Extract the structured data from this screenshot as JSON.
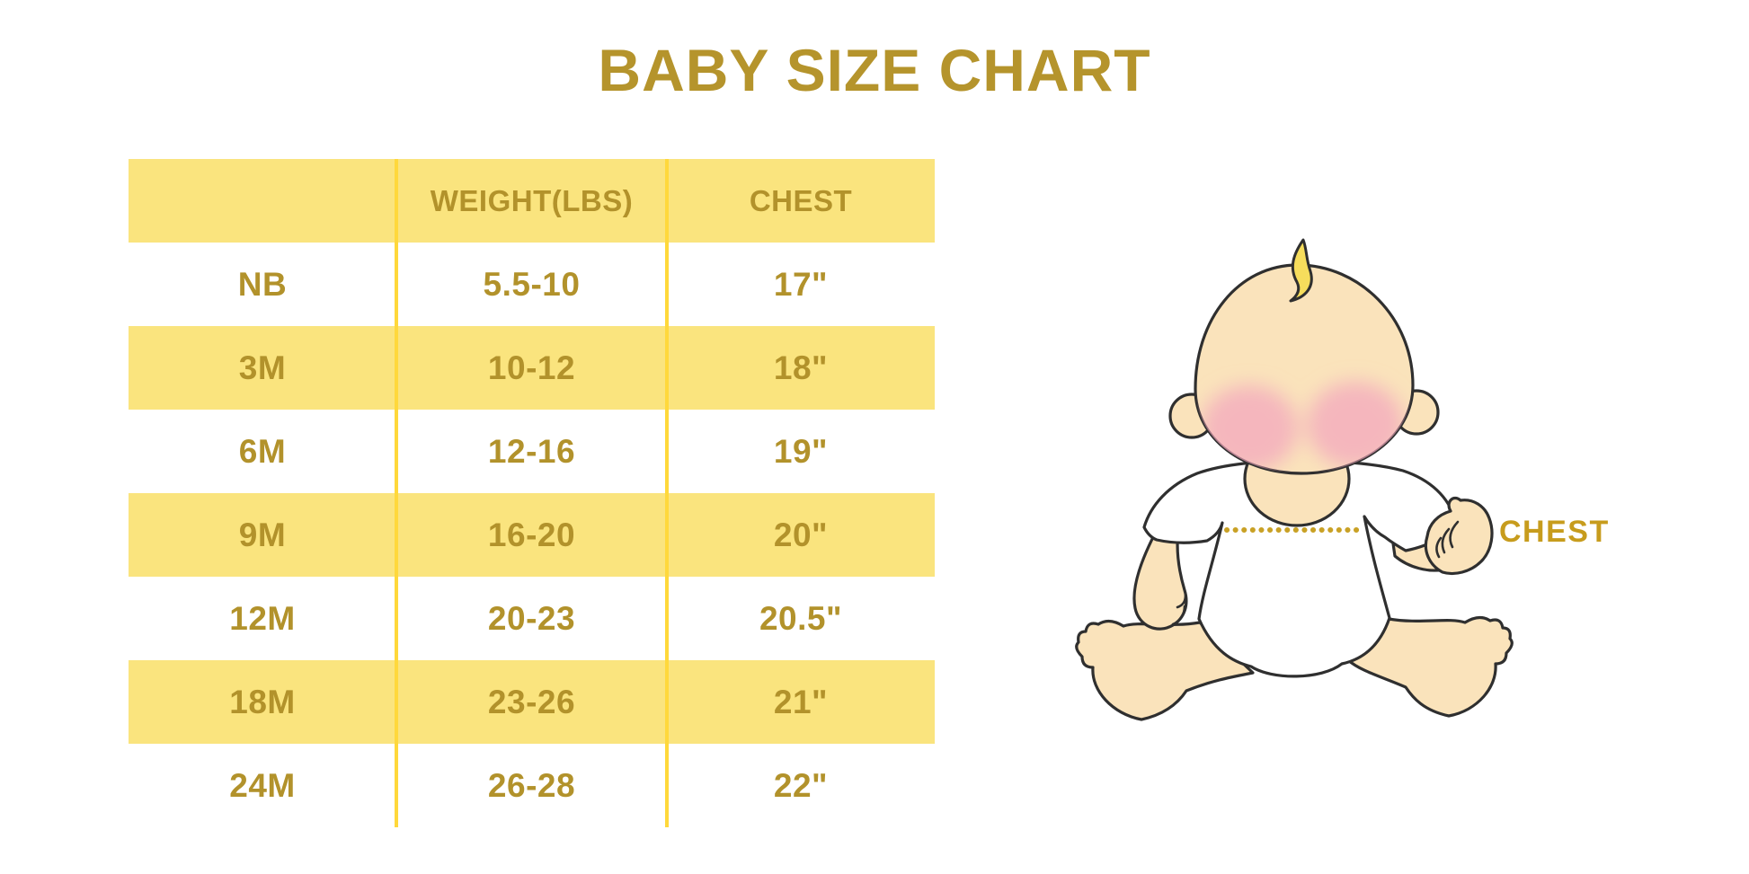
{
  "page": {
    "title": "BABY SIZE CHART"
  },
  "table": {
    "headers": [
      "",
      "WEIGHT(LBS)",
      "CHEST"
    ],
    "rows": [
      {
        "size": "NB",
        "weight": "5.5-10",
        "chest": "17\""
      },
      {
        "size": "3M",
        "weight": "10-12",
        "chest": "18\""
      },
      {
        "size": "6M",
        "weight": "12-16",
        "chest": "19\""
      },
      {
        "size": "9M",
        "weight": "16-20",
        "chest": "20\""
      },
      {
        "size": "12M",
        "weight": "20-23",
        "chest": "20.5\""
      },
      {
        "size": "18M",
        "weight": "23-26",
        "chest": "21\""
      },
      {
        "size": "24M",
        "weight": "26-28",
        "chest": "22\""
      }
    ]
  },
  "annotation": {
    "chest_label": "CHEST"
  },
  "colors": {
    "title_gold": "#B5942C",
    "table_text_gold": "#B2922B",
    "row_yellow": "#FAE47E",
    "divider_yellow": "#FFD83B",
    "chest_label_gold": "#C79C1D",
    "dotted_line_gold": "#C9A125",
    "baby_skin": "#FAE3BB",
    "cheek_pink": "#F3A7BE",
    "hair_yellow": "#F6DD5C"
  },
  "chart_data": {
    "type": "table",
    "title": "BABY SIZE CHART",
    "columns": [
      "",
      "WEIGHT(LBS)",
      "CHEST"
    ],
    "rows": [
      [
        "NB",
        "5.5-10",
        "17\""
      ],
      [
        "3M",
        "10-12",
        "18\""
      ],
      [
        "6M",
        "12-16",
        "19\""
      ],
      [
        "9M",
        "16-20",
        "20\""
      ],
      [
        "12M",
        "20-23",
        "20.5\""
      ],
      [
        "18M",
        "23-26",
        "21\""
      ],
      [
        "24M",
        "26-28",
        "22\""
      ]
    ]
  }
}
